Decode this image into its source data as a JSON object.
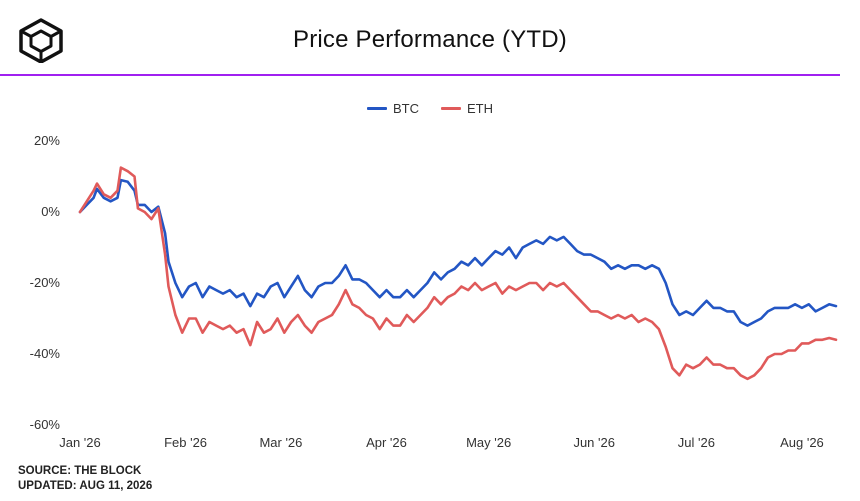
{
  "header": {
    "title": "Price Performance (YTD)",
    "accent_color": "#a020f0",
    "logo_icon": "the-block-cube-icon"
  },
  "footer": {
    "source": "SOURCE: THE BLOCK",
    "updated": "UPDATED: AUG 11, 2026"
  },
  "chart_data": {
    "type": "line",
    "title": "Price Performance (YTD)",
    "xlabel": "",
    "ylabel": "",
    "legend_position": "top",
    "grid": false,
    "x_ticks": [
      "Jan '26",
      "Feb '26",
      "Mar '26",
      "Apr '26",
      "May '26",
      "Jun '26",
      "Jul '26",
      "Aug '26"
    ],
    "y_ticks": [
      "20%",
      "0%",
      "-20%",
      "-40%",
      "-60%"
    ],
    "y_tick_values": [
      20,
      0,
      -20,
      -40,
      -60
    ],
    "ylim": [
      -60,
      20
    ],
    "xlim": [
      "2026-01-01",
      "2026-08-11"
    ],
    "series": [
      {
        "name": "BTC",
        "color": "#2356c4",
        "points": [
          [
            "2026-01-01",
            0
          ],
          [
            "2026-01-03",
            2
          ],
          [
            "2026-01-05",
            4
          ],
          [
            "2026-01-06",
            6.5
          ],
          [
            "2026-01-08",
            4
          ],
          [
            "2026-01-10",
            3
          ],
          [
            "2026-01-12",
            4
          ],
          [
            "2026-01-13",
            9
          ],
          [
            "2026-01-15",
            8.5
          ],
          [
            "2026-01-17",
            6
          ],
          [
            "2026-01-18",
            2
          ],
          [
            "2026-01-20",
            2
          ],
          [
            "2026-01-22",
            0
          ],
          [
            "2026-01-24",
            1.5
          ],
          [
            "2026-01-26",
            -6
          ],
          [
            "2026-01-27",
            -14
          ],
          [
            "2026-01-29",
            -20
          ],
          [
            "2026-01-31",
            -24
          ],
          [
            "2026-02-02",
            -21
          ],
          [
            "2026-02-04",
            -20
          ],
          [
            "2026-02-06",
            -24
          ],
          [
            "2026-02-08",
            -21
          ],
          [
            "2026-02-10",
            -22
          ],
          [
            "2026-02-12",
            -23
          ],
          [
            "2026-02-14",
            -22
          ],
          [
            "2026-02-16",
            -24
          ],
          [
            "2026-02-18",
            -23
          ],
          [
            "2026-02-20",
            -26.5
          ],
          [
            "2026-02-22",
            -23
          ],
          [
            "2026-02-24",
            -24
          ],
          [
            "2026-02-26",
            -21
          ],
          [
            "2026-02-28",
            -20
          ],
          [
            "2026-03-02",
            -24
          ],
          [
            "2026-03-04",
            -21
          ],
          [
            "2026-03-06",
            -18
          ],
          [
            "2026-03-08",
            -22
          ],
          [
            "2026-03-10",
            -24
          ],
          [
            "2026-03-12",
            -21
          ],
          [
            "2026-03-14",
            -20
          ],
          [
            "2026-03-16",
            -20
          ],
          [
            "2026-03-18",
            -18
          ],
          [
            "2026-03-20",
            -15
          ],
          [
            "2026-03-22",
            -19
          ],
          [
            "2026-03-24",
            -19
          ],
          [
            "2026-03-26",
            -20
          ],
          [
            "2026-03-28",
            -22
          ],
          [
            "2026-03-30",
            -24
          ],
          [
            "2026-04-01",
            -22
          ],
          [
            "2026-04-03",
            -24
          ],
          [
            "2026-04-05",
            -24
          ],
          [
            "2026-04-07",
            -22
          ],
          [
            "2026-04-09",
            -24
          ],
          [
            "2026-04-11",
            -22
          ],
          [
            "2026-04-13",
            -20
          ],
          [
            "2026-04-15",
            -17
          ],
          [
            "2026-04-17",
            -19
          ],
          [
            "2026-04-19",
            -17
          ],
          [
            "2026-04-21",
            -16
          ],
          [
            "2026-04-23",
            -14
          ],
          [
            "2026-04-25",
            -15
          ],
          [
            "2026-04-27",
            -13
          ],
          [
            "2026-04-29",
            -15
          ],
          [
            "2026-05-01",
            -13
          ],
          [
            "2026-05-03",
            -11
          ],
          [
            "2026-05-05",
            -12
          ],
          [
            "2026-05-07",
            -10
          ],
          [
            "2026-05-09",
            -13
          ],
          [
            "2026-05-11",
            -10
          ],
          [
            "2026-05-13",
            -9
          ],
          [
            "2026-05-15",
            -8
          ],
          [
            "2026-05-17",
            -9
          ],
          [
            "2026-05-19",
            -7
          ],
          [
            "2026-05-21",
            -8
          ],
          [
            "2026-05-23",
            -7
          ],
          [
            "2026-05-25",
            -9
          ],
          [
            "2026-05-27",
            -11
          ],
          [
            "2026-05-29",
            -12
          ],
          [
            "2026-05-31",
            -12
          ],
          [
            "2026-06-02",
            -13
          ],
          [
            "2026-06-04",
            -14
          ],
          [
            "2026-06-06",
            -16
          ],
          [
            "2026-06-08",
            -15
          ],
          [
            "2026-06-10",
            -16
          ],
          [
            "2026-06-12",
            -15
          ],
          [
            "2026-06-14",
            -15
          ],
          [
            "2026-06-16",
            -16
          ],
          [
            "2026-06-18",
            -15
          ],
          [
            "2026-06-20",
            -16
          ],
          [
            "2026-06-22",
            -20
          ],
          [
            "2026-06-24",
            -26
          ],
          [
            "2026-06-26",
            -29
          ],
          [
            "2026-06-28",
            -28
          ],
          [
            "2026-06-30",
            -29
          ],
          [
            "2026-07-02",
            -27
          ],
          [
            "2026-07-04",
            -25
          ],
          [
            "2026-07-06",
            -27
          ],
          [
            "2026-07-08",
            -27
          ],
          [
            "2026-07-10",
            -28
          ],
          [
            "2026-07-12",
            -28
          ],
          [
            "2026-07-14",
            -31
          ],
          [
            "2026-07-16",
            -32
          ],
          [
            "2026-07-18",
            -31
          ],
          [
            "2026-07-20",
            -30
          ],
          [
            "2026-07-22",
            -28
          ],
          [
            "2026-07-24",
            -27
          ],
          [
            "2026-07-26",
            -27
          ],
          [
            "2026-07-28",
            -27
          ],
          [
            "2026-07-30",
            -26
          ],
          [
            "2026-08-01",
            -27
          ],
          [
            "2026-08-03",
            -26
          ],
          [
            "2026-08-05",
            -28
          ],
          [
            "2026-08-07",
            -27
          ],
          [
            "2026-08-09",
            -26
          ],
          [
            "2026-08-11",
            -26.5
          ]
        ]
      },
      {
        "name": "ETH",
        "color": "#e05a5a",
        "points": [
          [
            "2026-01-01",
            0
          ],
          [
            "2026-01-03",
            3
          ],
          [
            "2026-01-05",
            6
          ],
          [
            "2026-01-06",
            8
          ],
          [
            "2026-01-08",
            5
          ],
          [
            "2026-01-10",
            4
          ],
          [
            "2026-01-12",
            6
          ],
          [
            "2026-01-13",
            12.5
          ],
          [
            "2026-01-15",
            11.5
          ],
          [
            "2026-01-17",
            10
          ],
          [
            "2026-01-18",
            1
          ],
          [
            "2026-01-20",
            0
          ],
          [
            "2026-01-22",
            -2
          ],
          [
            "2026-01-24",
            1
          ],
          [
            "2026-01-26",
            -12
          ],
          [
            "2026-01-27",
            -21
          ],
          [
            "2026-01-29",
            -29
          ],
          [
            "2026-01-31",
            -34
          ],
          [
            "2026-02-02",
            -30
          ],
          [
            "2026-02-04",
            -30
          ],
          [
            "2026-02-06",
            -34
          ],
          [
            "2026-02-08",
            -31
          ],
          [
            "2026-02-10",
            -32
          ],
          [
            "2026-02-12",
            -33
          ],
          [
            "2026-02-14",
            -32
          ],
          [
            "2026-02-16",
            -34
          ],
          [
            "2026-02-18",
            -33
          ],
          [
            "2026-02-20",
            -37.5
          ],
          [
            "2026-02-22",
            -31
          ],
          [
            "2026-02-24",
            -34
          ],
          [
            "2026-02-26",
            -33
          ],
          [
            "2026-02-28",
            -30
          ],
          [
            "2026-03-02",
            -34
          ],
          [
            "2026-03-04",
            -31
          ],
          [
            "2026-03-06",
            -29
          ],
          [
            "2026-03-08",
            -32
          ],
          [
            "2026-03-10",
            -34
          ],
          [
            "2026-03-12",
            -31
          ],
          [
            "2026-03-14",
            -30
          ],
          [
            "2026-03-16",
            -29
          ],
          [
            "2026-03-18",
            -26
          ],
          [
            "2026-03-20",
            -22
          ],
          [
            "2026-03-22",
            -26
          ],
          [
            "2026-03-24",
            -27
          ],
          [
            "2026-03-26",
            -29
          ],
          [
            "2026-03-28",
            -30
          ],
          [
            "2026-03-30",
            -33
          ],
          [
            "2026-04-01",
            -30
          ],
          [
            "2026-04-03",
            -32
          ],
          [
            "2026-04-05",
            -32
          ],
          [
            "2026-04-07",
            -29
          ],
          [
            "2026-04-09",
            -31
          ],
          [
            "2026-04-11",
            -29
          ],
          [
            "2026-04-13",
            -27
          ],
          [
            "2026-04-15",
            -24
          ],
          [
            "2026-04-17",
            -26
          ],
          [
            "2026-04-19",
            -24
          ],
          [
            "2026-04-21",
            -23
          ],
          [
            "2026-04-23",
            -21
          ],
          [
            "2026-04-25",
            -22
          ],
          [
            "2026-04-27",
            -20
          ],
          [
            "2026-04-29",
            -22
          ],
          [
            "2026-05-01",
            -21
          ],
          [
            "2026-05-03",
            -20
          ],
          [
            "2026-05-05",
            -23
          ],
          [
            "2026-05-07",
            -21
          ],
          [
            "2026-05-09",
            -22
          ],
          [
            "2026-05-11",
            -21
          ],
          [
            "2026-05-13",
            -20
          ],
          [
            "2026-05-15",
            -20
          ],
          [
            "2026-05-17",
            -22
          ],
          [
            "2026-05-19",
            -20
          ],
          [
            "2026-05-21",
            -21
          ],
          [
            "2026-05-23",
            -20
          ],
          [
            "2026-05-25",
            -22
          ],
          [
            "2026-05-27",
            -24
          ],
          [
            "2026-05-29",
            -26
          ],
          [
            "2026-05-31",
            -28
          ],
          [
            "2026-06-02",
            -28
          ],
          [
            "2026-06-04",
            -29
          ],
          [
            "2026-06-06",
            -30
          ],
          [
            "2026-06-08",
            -29
          ],
          [
            "2026-06-10",
            -30
          ],
          [
            "2026-06-12",
            -29
          ],
          [
            "2026-06-14",
            -31
          ],
          [
            "2026-06-16",
            -30
          ],
          [
            "2026-06-18",
            -31
          ],
          [
            "2026-06-20",
            -33
          ],
          [
            "2026-06-22",
            -38
          ],
          [
            "2026-06-24",
            -44
          ],
          [
            "2026-06-26",
            -46
          ],
          [
            "2026-06-28",
            -43
          ],
          [
            "2026-06-30",
            -44
          ],
          [
            "2026-07-02",
            -43
          ],
          [
            "2026-07-04",
            -41
          ],
          [
            "2026-07-06",
            -43
          ],
          [
            "2026-07-08",
            -43
          ],
          [
            "2026-07-10",
            -44
          ],
          [
            "2026-07-12",
            -44
          ],
          [
            "2026-07-14",
            -46
          ],
          [
            "2026-07-16",
            -47
          ],
          [
            "2026-07-18",
            -46
          ],
          [
            "2026-07-20",
            -44
          ],
          [
            "2026-07-22",
            -41
          ],
          [
            "2026-07-24",
            -40
          ],
          [
            "2026-07-26",
            -40
          ],
          [
            "2026-07-28",
            -39
          ],
          [
            "2026-07-30",
            -39
          ],
          [
            "2026-08-01",
            -37
          ],
          [
            "2026-08-03",
            -37
          ],
          [
            "2026-08-05",
            -36
          ],
          [
            "2026-08-07",
            -36
          ],
          [
            "2026-08-09",
            -35.5
          ],
          [
            "2026-08-11",
            -36
          ]
        ]
      }
    ]
  }
}
